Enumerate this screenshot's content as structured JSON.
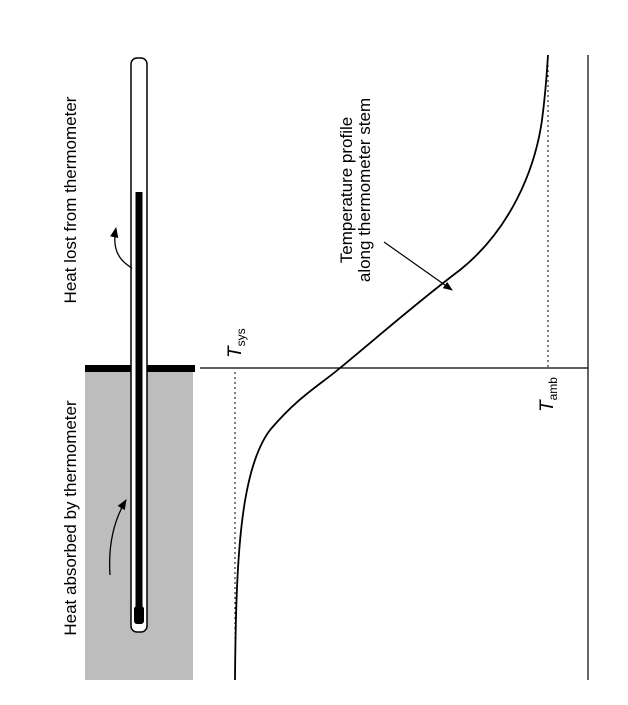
{
  "labels": {
    "heat_lost": "Heat lost from thermometer",
    "heat_absorbed": "Heat absorbed by thermometer",
    "profile": [
      "Temperature profile",
      "along thermometer stem"
    ],
    "t_sys": {
      "symbol": "T",
      "subscript": "sys"
    },
    "t_amb": {
      "symbol": "T",
      "subscript": "amb"
    }
  }
}
